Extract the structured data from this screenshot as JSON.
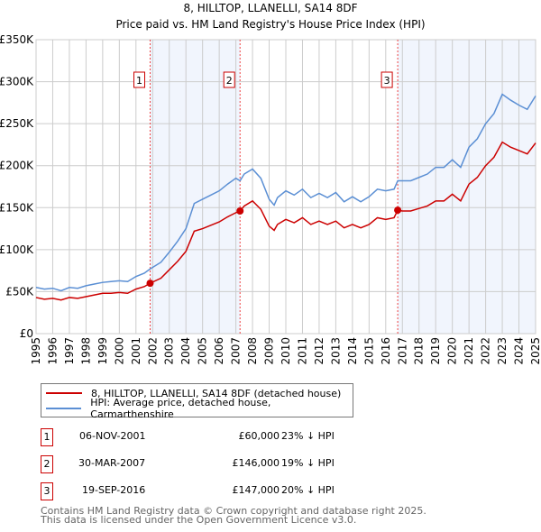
{
  "chart_data": {
    "type": "line",
    "title": "8, HILLTOP, LLANELLI, SA14 8DF",
    "subtitle": "Price paid vs. HM Land Registry's House Price Index (HPI)",
    "xlim": [
      1995,
      2025
    ],
    "ylim": [
      0,
      350000
    ],
    "x_ticks": [
      "1995",
      "1996",
      "1997",
      "1998",
      "1999",
      "2000",
      "2001",
      "2002",
      "2003",
      "2004",
      "2005",
      "2006",
      "2007",
      "2008",
      "2009",
      "2010",
      "2011",
      "2012",
      "2013",
      "2014",
      "2015",
      "2016",
      "2017",
      "2018",
      "2019",
      "2020",
      "2021",
      "2022",
      "2023",
      "2024",
      "2025"
    ],
    "y_ticks": [
      {
        "v": 0,
        "label": "£0"
      },
      {
        "v": 50000,
        "label": "£50K"
      },
      {
        "v": 100000,
        "label": "£100K"
      },
      {
        "v": 150000,
        "label": "£150K"
      },
      {
        "v": 200000,
        "label": "£200K"
      },
      {
        "v": 250000,
        "label": "£250K"
      },
      {
        "v": 300000,
        "label": "£300K"
      },
      {
        "v": 350000,
        "label": "£350K"
      }
    ],
    "grid": true,
    "x": [
      1995,
      1995.5,
      1996,
      1996.5,
      1997,
      1997.5,
      1998,
      1998.5,
      1999,
      1999.5,
      2000,
      2000.5,
      2001,
      2001.5,
      2001.85,
      2002.5,
      2003,
      2003.5,
      2004,
      2004.5,
      2005,
      2005.5,
      2006,
      2006.5,
      2007,
      2007.25,
      2007.5,
      2008,
      2008.5,
      2009,
      2009.3,
      2009.5,
      2010,
      2010.5,
      2011,
      2011.5,
      2012,
      2012.5,
      2013,
      2013.5,
      2014,
      2014.5,
      2015,
      2015.5,
      2016,
      2016.5,
      2016.72,
      2017,
      2017.5,
      2018,
      2018.5,
      2019,
      2019.5,
      2020,
      2020.5,
      2021,
      2021.5,
      2022,
      2022.5,
      2023,
      2023.5,
      2024,
      2024.5,
      2025
    ],
    "series": [
      {
        "name": "8, HILLTOP, LLANELLI, SA14 8DF (detached house)",
        "color": "#cc0000",
        "values": [
          43,
          41,
          42,
          40,
          43,
          42,
          44,
          46,
          48,
          48,
          49,
          48,
          53,
          56,
          60,
          66,
          76,
          86,
          98,
          122,
          125,
          129,
          133,
          139,
          144,
          146,
          152,
          158,
          148,
          128,
          123,
          130,
          136,
          132,
          138,
          130,
          134,
          130,
          134,
          126,
          130,
          126,
          130,
          138,
          136,
          138,
          147,
          146,
          146,
          149,
          152,
          158,
          158,
          166,
          158,
          178,
          186,
          200,
          210,
          228,
          222,
          218,
          214,
          227
        ]
      },
      {
        "name": "HPI: Average price, detached house, Carmarthenshire",
        "color": "#5b8fd4",
        "values": [
          55,
          53,
          54,
          51,
          55,
          54,
          57,
          59,
          61,
          62,
          63,
          62,
          68,
          72,
          77,
          85,
          97,
          110,
          125,
          155,
          160,
          165,
          170,
          178,
          185,
          182,
          190,
          196,
          185,
          160,
          153,
          162,
          170,
          165,
          172,
          162,
          167,
          162,
          168,
          157,
          163,
          157,
          163,
          172,
          170,
          172,
          182,
          182,
          182,
          186,
          190,
          198,
          198,
          207,
          198,
          222,
          232,
          250,
          262,
          285,
          278,
          272,
          267,
          283
        ]
      }
    ],
    "value_unit": "thousand GBP",
    "sales": [
      {
        "label": "1",
        "x": 2001.85,
        "value": 60000,
        "date": "06-NOV-2001",
        "price": "£60,000",
        "hpi": "23% ↓ HPI"
      },
      {
        "label": "2",
        "x": 2007.25,
        "value": 146000,
        "date": "30-MAR-2007",
        "price": "£146,000",
        "hpi": "19% ↓ HPI"
      },
      {
        "label": "3",
        "x": 2016.72,
        "value": 147000,
        "date": "19-SEP-2016",
        "price": "£147,000",
        "hpi": "20% ↓ HPI"
      }
    ],
    "shaded_ranges": [
      [
        2001.85,
        2007.25
      ],
      [
        2016.72,
        2025
      ]
    ],
    "legend": [
      "8, HILLTOP, LLANELLI, SA14 8DF (detached house)",
      "HPI: Average price, detached house, Carmarthenshire"
    ],
    "legend_placement": "below"
  },
  "footer": [
    "Contains HM Land Registry data © Crown copyright and database right 2025.",
    "This data is licensed under the Open Government Licence v3.0."
  ]
}
